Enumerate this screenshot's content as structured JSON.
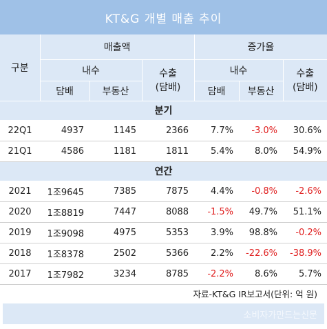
{
  "title": "KT&G 개별 매출 추이",
  "header": {
    "gubun": "구분",
    "sales": "매출액",
    "growth": "증가율",
    "domestic": "내수",
    "export": "수출",
    "export_sub": "(담배)",
    "tobacco": "담배",
    "real_estate": "부동산"
  },
  "sections": {
    "quarter": "분기",
    "annual": "연간"
  },
  "quarter_rows": [
    {
      "label": "22Q1",
      "tobacco": "4937",
      "real_estate": "1145",
      "export": "2366",
      "g_tobacco": "7.7%",
      "g_real_estate": "-3.0%",
      "g_export": "30.6%"
    },
    {
      "label": "21Q1",
      "tobacco": "4586",
      "real_estate": "1181",
      "export": "1811",
      "g_tobacco": "5.4%",
      "g_real_estate": "8.0%",
      "g_export": "54.9%"
    }
  ],
  "annual_rows": [
    {
      "label": "2021",
      "tobacco": "1조9645",
      "real_estate": "7385",
      "export": "7875",
      "g_tobacco": "4.4%",
      "g_real_estate": "-0.8%",
      "g_export": "-2.6%"
    },
    {
      "label": "2020",
      "tobacco": "1조8819",
      "real_estate": "7447",
      "export": "8088",
      "g_tobacco": "-1.5%",
      "g_real_estate": "49.7%",
      "g_export": "51.1%"
    },
    {
      "label": "2019",
      "tobacco": "1조9098",
      "real_estate": "4975",
      "export": "5353",
      "g_tobacco": "3.9%",
      "g_real_estate": "98.8%",
      "g_export": "-0.2%"
    },
    {
      "label": "2018",
      "tobacco": "1조8378",
      "real_estate": "2502",
      "export": "5366",
      "g_tobacco": "2.2%",
      "g_real_estate": "-22.6%",
      "g_export": "-38.9%"
    },
    {
      "label": "2017",
      "tobacco": "1조7982",
      "real_estate": "3234",
      "export": "8785",
      "g_tobacco": "-2.2%",
      "g_real_estate": "8.6%",
      "g_export": "5.7%"
    }
  ],
  "source": "자료-KT&G IR보고서(단위: 억 원)",
  "watermark": "소비자가만드는신문",
  "colors": {
    "header_bg": "#dce8f6",
    "title_bg": "#9fc1e7",
    "negative": "#e02020"
  }
}
